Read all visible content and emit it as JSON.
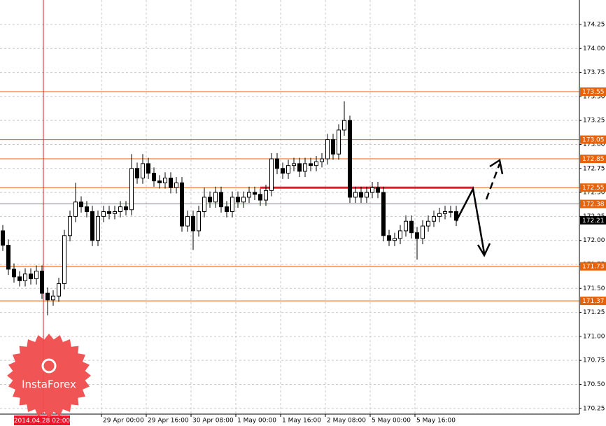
{
  "chart_data": {
    "type": "candlestick",
    "open": [
      172.1,
      171.95,
      171.7,
      171.62,
      171.58,
      171.65,
      171.6,
      171.68,
      171.45,
      171.38,
      171.42,
      171.55,
      172.05,
      172.25,
      172.4,
      172.35,
      172.3,
      172.0,
      172.25,
      172.3,
      172.28,
      172.3,
      172.35,
      172.32,
      172.75,
      172.65,
      172.8,
      172.7,
      172.62,
      172.6,
      172.65,
      172.55,
      172.6,
      172.15,
      172.25,
      172.1,
      172.3,
      172.45,
      172.4,
      172.5,
      172.35,
      172.3,
      172.45,
      172.4,
      172.45,
      172.5,
      172.48,
      172.42,
      172.52,
      172.85,
      172.75,
      172.7,
      172.78,
      172.8,
      172.72,
      172.8,
      172.78,
      172.82,
      172.85,
      173.05,
      172.9,
      173.15,
      173.25,
      172.45,
      172.5,
      172.45,
      172.5,
      172.55,
      172.5,
      172.05,
      172.0,
      172.02,
      172.1,
      172.2,
      172.08,
      172.02,
      172.15,
      172.2,
      172.25,
      172.28,
      172.3,
      172.3
    ],
    "high": [
      172.16,
      172.01,
      171.76,
      171.68,
      171.71,
      171.71,
      171.74,
      171.74,
      171.51,
      171.48,
      171.61,
      172.11,
      172.31,
      172.6,
      172.46,
      172.41,
      172.36,
      172.31,
      172.36,
      172.36,
      172.36,
      172.41,
      172.41,
      172.9,
      172.81,
      172.9,
      172.86,
      172.76,
      172.68,
      172.71,
      172.71,
      172.66,
      172.66,
      172.31,
      172.31,
      172.36,
      172.55,
      172.51,
      172.56,
      172.56,
      172.41,
      172.51,
      172.51,
      172.51,
      172.56,
      172.56,
      172.54,
      172.58,
      172.91,
      172.91,
      172.81,
      172.84,
      172.86,
      172.86,
      172.86,
      172.86,
      172.88,
      172.91,
      173.11,
      173.11,
      173.21,
      173.45,
      173.3,
      172.56,
      172.56,
      172.56,
      172.61,
      172.61,
      172.56,
      172.11,
      172.08,
      172.16,
      172.26,
      172.26,
      172.14,
      172.21,
      172.26,
      172.31,
      172.34,
      172.36,
      172.36,
      172.36
    ],
    "low": [
      171.89,
      171.64,
      171.56,
      171.52,
      171.52,
      171.54,
      171.54,
      171.39,
      171.22,
      171.32,
      171.36,
      171.49,
      171.99,
      172.19,
      172.29,
      172.24,
      171.94,
      171.94,
      172.19,
      172.22,
      172.22,
      172.24,
      172.26,
      172.26,
      172.59,
      172.59,
      172.64,
      172.56,
      172.54,
      172.54,
      172.49,
      172.49,
      172.09,
      172.09,
      171.9,
      172.04,
      172.24,
      172.34,
      172.34,
      172.29,
      172.24,
      172.24,
      172.34,
      172.34,
      172.39,
      172.42,
      172.36,
      172.36,
      172.46,
      172.69,
      172.64,
      172.64,
      172.72,
      172.66,
      172.66,
      172.72,
      172.72,
      172.76,
      172.79,
      172.84,
      172.84,
      173.09,
      172.39,
      172.39,
      172.39,
      172.39,
      172.44,
      172.44,
      171.99,
      171.94,
      171.94,
      171.96,
      172.04,
      172.02,
      171.8,
      171.96,
      172.09,
      172.14,
      172.19,
      172.22,
      172.24,
      172.15
    ],
    "close": [
      171.95,
      171.7,
      171.62,
      171.58,
      171.65,
      171.6,
      171.68,
      171.45,
      171.38,
      171.42,
      171.55,
      172.05,
      172.25,
      172.4,
      172.35,
      172.3,
      172.0,
      172.25,
      172.3,
      172.28,
      172.3,
      172.35,
      172.32,
      172.75,
      172.65,
      172.8,
      172.7,
      172.62,
      172.6,
      172.65,
      172.55,
      172.6,
      172.15,
      172.25,
      172.1,
      172.3,
      172.45,
      172.4,
      172.5,
      172.35,
      172.3,
      172.45,
      172.4,
      172.45,
      172.5,
      172.48,
      172.42,
      172.52,
      172.85,
      172.75,
      172.7,
      172.78,
      172.8,
      172.72,
      172.8,
      172.78,
      172.82,
      172.85,
      173.05,
      172.9,
      173.15,
      173.25,
      172.45,
      172.5,
      172.45,
      172.5,
      172.55,
      172.5,
      172.05,
      172.0,
      172.02,
      172.1,
      172.2,
      172.08,
      172.02,
      172.15,
      172.2,
      172.25,
      172.28,
      172.3,
      172.3,
      172.21
    ],
    "xlim": [
      -0.5,
      103
    ],
    "xticks": [
      {
        "value": 17.625,
        "label": "29 Apr 00:00"
      },
      {
        "value": 25.625,
        "label": "29 Apr 16:00"
      },
      {
        "value": 33.625,
        "label": "30 Apr 08:00"
      },
      {
        "value": 41.625,
        "label": "1 May 00:00"
      },
      {
        "value": 49.625,
        "label": "1 May 16:00"
      },
      {
        "value": 57.625,
        "label": "2 May 08:00"
      },
      {
        "value": 65.625,
        "label": "5 May 00:00"
      },
      {
        "value": 73.625,
        "label": "5 May 16:00"
      }
    ],
    "ylim": [
      170.19,
      174.505
    ],
    "yticks": [
      174.25,
      {
        "value": 174,
        "label": "174.00"
      },
      173.75,
      {
        "value": 173.5,
        "label": "173.50"
      },
      173.25,
      {
        "value": 173,
        "label": "173.00"
      },
      172.75,
      {
        "value": 172.5,
        "label": "172.50"
      },
      172.25,
      {
        "value": 172,
        "label": "172.00"
      },
      171.75,
      {
        "value": 171.5,
        "label": "171.50"
      },
      171.25,
      {
        "value": 171,
        "label": "171.00"
      },
      170.75,
      {
        "value": 170.5,
        "label": "170.50"
      },
      170.25
    ],
    "grid": true,
    "levels": [
      173.55,
      173.05,
      172.85,
      172.55,
      172.38,
      171.73,
      171.37
    ],
    "level_color": "#e8620a",
    "last_price": 172.21,
    "resistance": {
      "value": 172.55,
      "from": 46,
      "to": 84,
      "color": "#e8182a"
    },
    "cursor": {
      "x": 7.25,
      "label": "2014.04.28 02:00",
      "color": "#e8182a"
    },
    "logo": "InstaForex"
  }
}
